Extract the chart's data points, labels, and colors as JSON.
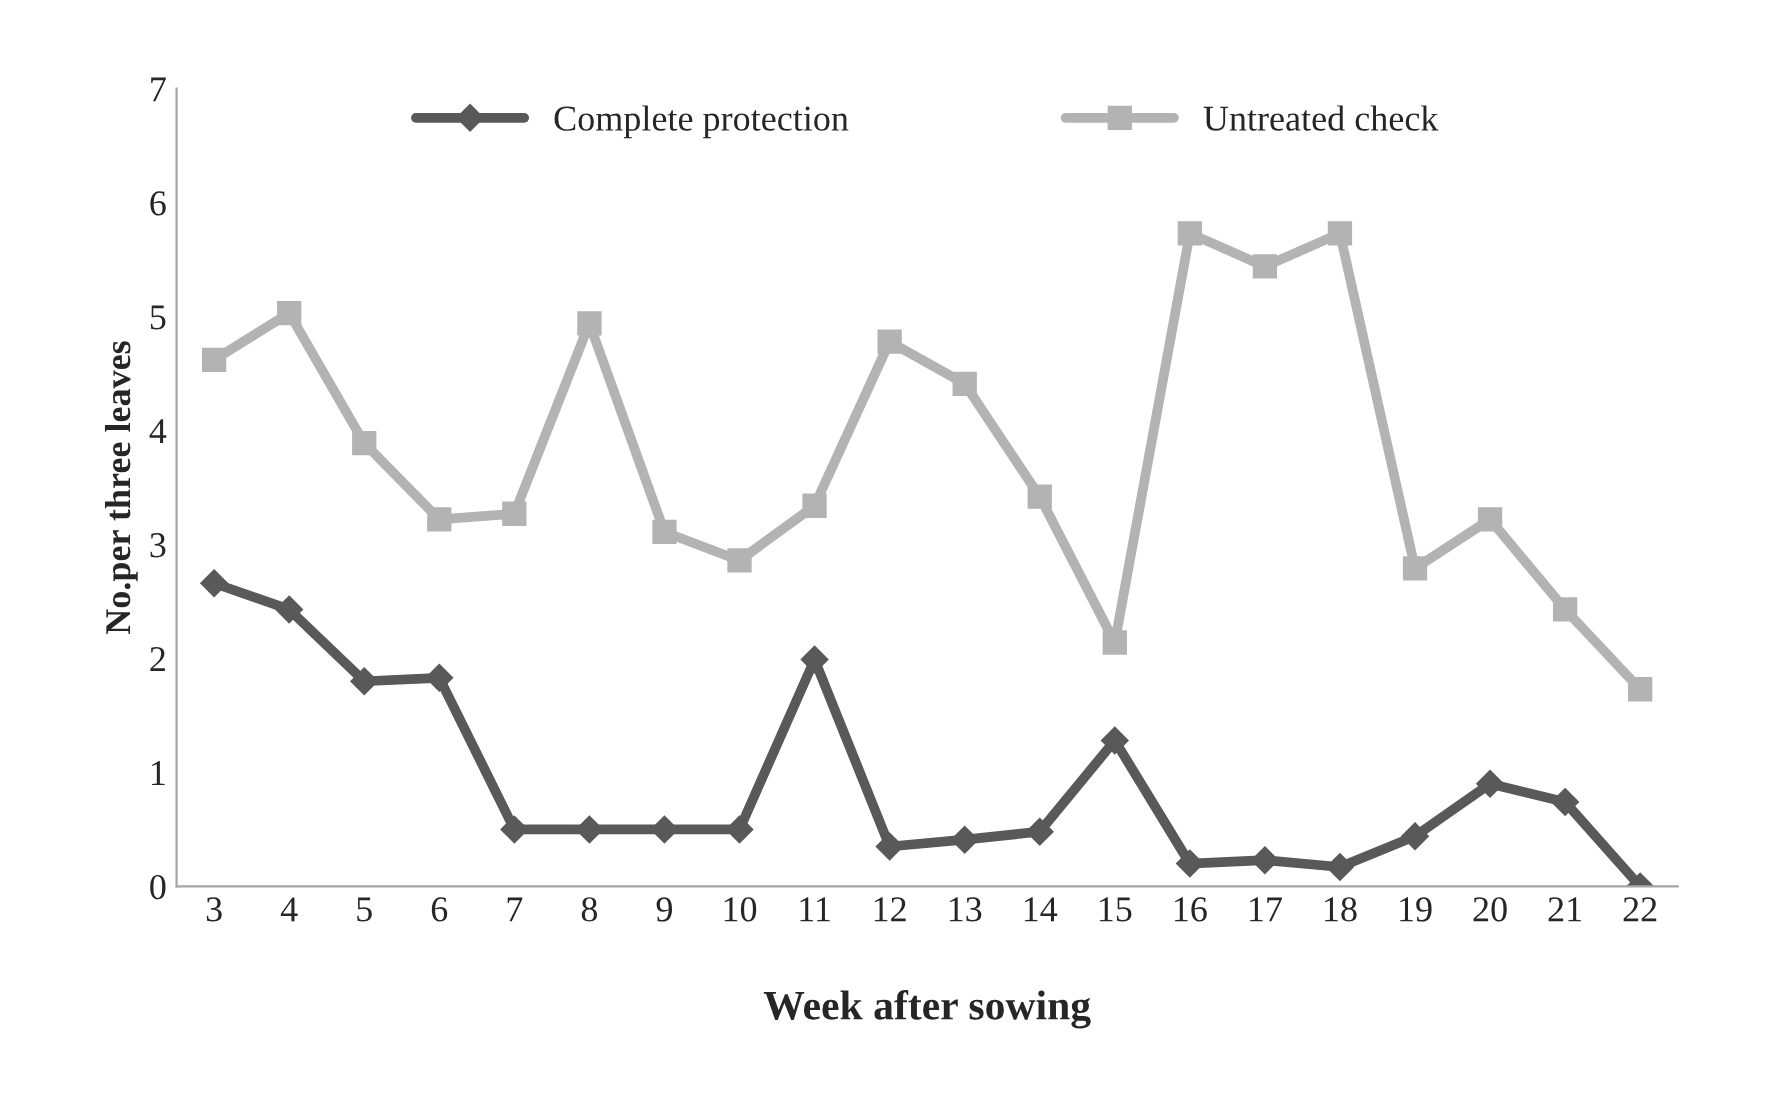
{
  "chart_data": {
    "type": "line",
    "xlabel": "Week after sowing",
    "ylabel": "No.per three leaves",
    "categories": [
      "3",
      "4",
      "5",
      "6",
      "7",
      "8",
      "9",
      "10",
      "11",
      "12",
      "13",
      "14",
      "15",
      "16",
      "17",
      "18",
      "19",
      "20",
      "21",
      "22"
    ],
    "series": [
      {
        "name": "Complete protection",
        "color": "#595959",
        "marker": "diamond",
        "values": [
          2.66,
          2.43,
          1.8,
          1.83,
          0.5,
          0.5,
          0.5,
          0.5,
          1.99,
          0.35,
          0.41,
          0.48,
          1.28,
          0.2,
          0.23,
          0.17,
          0.44,
          0.9,
          0.74,
          0
        ]
      },
      {
        "name": "Untreated check",
        "color": "#b3b3b3",
        "marker": "square",
        "values": [
          4.62,
          5.03,
          3.89,
          3.22,
          3.27,
          4.94,
          3.11,
          2.86,
          3.34,
          4.78,
          4.41,
          3.42,
          2.14,
          5.73,
          5.44,
          5.73,
          2.79,
          3.22,
          2.43,
          1.73
        ]
      }
    ],
    "ylim": [
      0,
      7
    ],
    "yticks": [
      0,
      1,
      2,
      3,
      4,
      5,
      6,
      7
    ],
    "grid": false,
    "legend": "top",
    "line_style": "solid"
  }
}
